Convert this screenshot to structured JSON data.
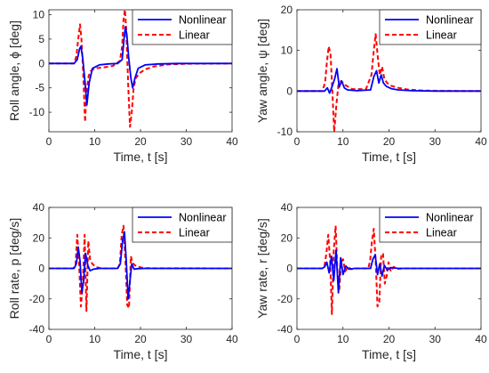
{
  "chart_data": [
    {
      "type": "line",
      "xlabel": "Time, t [s]",
      "ylabel": "Roll angle, ϕ [deg]",
      "xlim": [
        0,
        40
      ],
      "ylim": [
        -14,
        11
      ],
      "xticks": [
        0,
        10,
        20,
        30,
        40
      ],
      "xtick_labels": [
        "0",
        "10",
        "20",
        "30",
        "40"
      ],
      "yticks": [
        -10,
        -5,
        0,
        5,
        10
      ],
      "ytick_labels": [
        "-10",
        "-5",
        "0",
        "5",
        "10"
      ],
      "legend": "top-right",
      "grid": false,
      "series": [
        {
          "name": "Nonlinear",
          "color": "#0000ff",
          "style": "solid",
          "x": [
            0,
            5.5,
            6.2,
            6.7,
            7.0,
            7.4,
            7.9,
            8.3,
            8.8,
            9.5,
            11,
            13,
            15,
            16,
            16.4,
            16.7,
            17.0,
            17.4,
            17.9,
            18.3,
            18.8,
            19.5,
            21,
            24,
            28,
            40
          ],
          "y": [
            0,
            0,
            0.8,
            3.0,
            3.5,
            1.0,
            -4.0,
            -8.5,
            -4.0,
            -1.0,
            -0.3,
            -0.1,
            0,
            0.8,
            5.0,
            7.5,
            6.0,
            1.5,
            -3.0,
            -5.0,
            -3.0,
            -1.0,
            -0.3,
            -0.1,
            0,
            0
          ]
        },
        {
          "name": "Linear",
          "color": "#ff0000",
          "style": "dashed",
          "x": [
            0,
            5.5,
            6.0,
            6.4,
            6.8,
            7.1,
            7.5,
            7.9,
            8.2,
            8.7,
            9.2,
            10,
            12,
            14,
            15.5,
            16.0,
            16.3,
            16.6,
            16.9,
            17.3,
            17.7,
            18.1,
            18.5,
            19,
            19.8,
            21,
            23,
            26,
            30,
            40
          ],
          "y": [
            0,
            0,
            1.5,
            5.0,
            8.0,
            5.0,
            -2.0,
            -12.0,
            -6.0,
            -2.5,
            -1.5,
            -1.0,
            -0.8,
            -0.5,
            0.5,
            3.5,
            9.0,
            11.0,
            7.0,
            -4.0,
            -13.0,
            -10.0,
            -5.0,
            -3.0,
            -2.0,
            -1.2,
            -0.6,
            -0.2,
            -0.05,
            0
          ]
        }
      ]
    },
    {
      "type": "line",
      "xlabel": "Time, t [s]",
      "ylabel": "Yaw angle, ψ [deg]",
      "xlim": [
        0,
        40
      ],
      "ylim": [
        -10,
        20
      ],
      "xticks": [
        0,
        10,
        20,
        30,
        40
      ],
      "xtick_labels": [
        "0",
        "10",
        "20",
        "30",
        "40"
      ],
      "yticks": [
        -10,
        0,
        10,
        20
      ],
      "ytick_labels": [
        "-10",
        "0",
        "10",
        "20"
      ],
      "legend": "top-right",
      "grid": false,
      "series": [
        {
          "name": "Nonlinear",
          "color": "#0000ff",
          "style": "solid",
          "x": [
            0,
            6.0,
            6.6,
            7.1,
            7.6,
            8.2,
            8.7,
            9.2,
            9.7,
            10.3,
            11,
            13,
            16,
            16.7,
            17.3,
            17.8,
            18.3,
            18.8,
            19.4,
            20.5,
            22,
            25,
            30,
            40
          ],
          "y": [
            0,
            0,
            0.8,
            -0.5,
            1.0,
            3.0,
            5.5,
            1.0,
            2.5,
            0.8,
            0.3,
            0.1,
            0.3,
            3.5,
            5.0,
            2.0,
            4.0,
            2.0,
            1.2,
            0.6,
            0.3,
            0.1,
            0,
            0
          ]
        },
        {
          "name": "Linear",
          "color": "#ff0000",
          "style": "dashed",
          "x": [
            0,
            5.5,
            6.1,
            6.5,
            6.9,
            7.3,
            7.7,
            8.1,
            8.6,
            9.0,
            9.6,
            10.5,
            12,
            15,
            16.2,
            16.7,
            17.1,
            17.6,
            18.0,
            18.5,
            19.0,
            19.6,
            20.5,
            22,
            24,
            27,
            31,
            40
          ],
          "y": [
            0,
            0,
            2.0,
            7.0,
            11.0,
            9.0,
            0.0,
            -10.0,
            -3.0,
            1.5,
            2.5,
            1.5,
            0.5,
            0.5,
            4.0,
            10.0,
            14.0,
            8.0,
            4.0,
            6.0,
            3.0,
            2.0,
            1.3,
            0.8,
            0.4,
            0.15,
            0.05,
            0
          ]
        }
      ]
    },
    {
      "type": "line",
      "xlabel": "Time, t [s]",
      "ylabel": "Roll rate, p [deg/s]",
      "xlim": [
        0,
        40
      ],
      "ylim": [
        -40,
        40
      ],
      "xticks": [
        0,
        10,
        20,
        30,
        40
      ],
      "xtick_labels": [
        "0",
        "10",
        "20",
        "30",
        "40"
      ],
      "yticks": [
        -40,
        -20,
        0,
        20,
        40
      ],
      "ytick_labels": [
        "-40",
        "-20",
        "0",
        "20",
        "40"
      ],
      "legend": "top-right",
      "grid": false,
      "series": [
        {
          "name": "Nonlinear",
          "color": "#0000ff",
          "style": "solid",
          "x": [
            0,
            5.5,
            6.0,
            6.4,
            6.8,
            7.2,
            7.6,
            8.0,
            8.5,
            9.0,
            9.7,
            11,
            15,
            15.6,
            16.1,
            16.5,
            16.9,
            17.3,
            17.7,
            18.1,
            18.6,
            19.3,
            21,
            40
          ],
          "y": [
            0,
            0,
            3.0,
            14.0,
            5.0,
            -16.0,
            -8.0,
            10.0,
            2.0,
            -1.5,
            -0.5,
            0,
            0,
            3.0,
            18.0,
            24.0,
            5.0,
            -20.0,
            -8.0,
            3.0,
            -0.5,
            -0.2,
            0,
            0
          ]
        },
        {
          "name": "Linear",
          "color": "#ff0000",
          "style": "dashed",
          "x": [
            0,
            5.3,
            5.8,
            6.2,
            6.6,
            7.0,
            7.4,
            7.8,
            8.2,
            8.6,
            9.0,
            9.5,
            10.2,
            11.5,
            15,
            15.5,
            15.9,
            16.3,
            16.7,
            17.1,
            17.5,
            17.9,
            18.3,
            18.8,
            19.4,
            20.2,
            21.5,
            40
          ],
          "y": [
            0,
            0,
            2.0,
            22.0,
            3.0,
            -25.0,
            -10.0,
            22.0,
            -28.0,
            18.0,
            6.0,
            3.0,
            1.0,
            0,
            0,
            3.0,
            22.0,
            28.0,
            6.0,
            -24.0,
            -26.0,
            8.0,
            3.5,
            2.0,
            1.2,
            0.5,
            0.1,
            0
          ]
        }
      ]
    },
    {
      "type": "line",
      "xlabel": "Time, t [s]",
      "ylabel": "Yaw rate, r [deg/s]",
      "xlim": [
        0,
        40
      ],
      "ylim": [
        -40,
        40
      ],
      "xticks": [
        0,
        10,
        20,
        30,
        40
      ],
      "xtick_labels": [
        "0",
        "10",
        "20",
        "30",
        "40"
      ],
      "yticks": [
        -40,
        -20,
        0,
        20,
        40
      ],
      "ytick_labels": [
        "-40",
        "-20",
        "0",
        "20",
        "40"
      ],
      "legend": "top-right",
      "grid": false,
      "series": [
        {
          "name": "Nonlinear",
          "color": "#0000ff",
          "style": "solid",
          "x": [
            0,
            5.5,
            6.0,
            6.5,
            7.0,
            7.5,
            8.0,
            8.5,
            9.0,
            9.5,
            10.0,
            10.6,
            11.3,
            12.5,
            16,
            16.5,
            17.0,
            17.5,
            18.0,
            18.5,
            19.0,
            19.6,
            20.5,
            22,
            40
          ],
          "y": [
            0,
            0,
            1.0,
            4.0,
            -3.0,
            8.0,
            -8.0,
            12.0,
            -16.0,
            7.0,
            -4.0,
            1.5,
            -0.5,
            0,
            0,
            6.0,
            9.0,
            -4.0,
            3.0,
            -5.0,
            2.0,
            -1.0,
            0.5,
            0,
            0
          ]
        },
        {
          "name": "Linear",
          "color": "#ff0000",
          "style": "dashed",
          "x": [
            0,
            5.5,
            6.0,
            6.4,
            6.8,
            7.2,
            7.6,
            8.0,
            8.4,
            8.8,
            9.2,
            9.6,
            10.0,
            10.5,
            11.1,
            11.8,
            13,
            15.5,
            15.9,
            16.3,
            16.7,
            17.1,
            17.5,
            17.9,
            18.3,
            18.7,
            19.1,
            19.5,
            19.9,
            20.4,
            21.0,
            21.8,
            23,
            40
          ],
          "y": [
            0,
            0,
            2.0,
            10.0,
            22.0,
            5.0,
            -30.0,
            12.0,
            28.0,
            -2.0,
            -14.0,
            4.0,
            6.0,
            -2.0,
            1.0,
            -0.5,
            0,
            0,
            5.0,
            18.0,
            26.0,
            5.0,
            -25.0,
            -22.0,
            8.0,
            10.0,
            -10.0,
            -5.0,
            4.0,
            -2.0,
            1.0,
            -0.3,
            0,
            0
          ]
        }
      ]
    }
  ]
}
